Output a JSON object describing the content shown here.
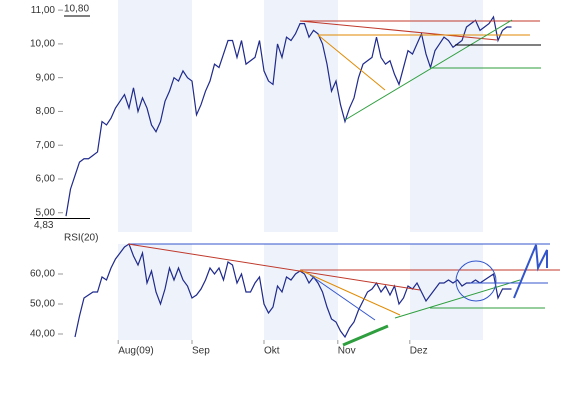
{
  "chart_data": [
    {
      "type": "line",
      "xlim": [
        0,
        99
      ],
      "ylim": [
        4.43,
        11.3
      ],
      "yticks": [
        {
          "value": 5,
          "label": "5,00"
        },
        {
          "value": 6,
          "label": "6,00"
        },
        {
          "value": 7,
          "label": "7,00"
        },
        {
          "value": 8,
          "label": "8,00"
        },
        {
          "value": 9,
          "label": "9,00"
        },
        {
          "value": 10,
          "label": "10,00"
        },
        {
          "value": 11,
          "label": "11,00"
        }
      ],
      "annotations": [
        {
          "value": 10.8,
          "label": "10,80"
        },
        {
          "value": 4.83,
          "label": "4,83"
        }
      ],
      "series": [
        {
          "color": "#1f2a8c",
          "values": [
            4.9,
            5.7,
            6.1,
            6.5,
            6.6,
            6.6,
            6.7,
            6.8,
            7.7,
            7.6,
            7.8,
            8.1,
            8.3,
            8.5,
            8.1,
            8.7,
            8.0,
            8.4,
            8.1,
            7.6,
            7.4,
            7.7,
            8.3,
            8.6,
            9.0,
            8.9,
            9.2,
            9.0,
            8.9,
            7.9,
            8.2,
            8.6,
            8.9,
            9.4,
            9.3,
            9.7,
            10.1,
            10.1,
            9.6,
            10.1,
            9.4,
            9.5,
            9.6,
            10.1,
            9.2,
            8.9,
            8.8,
            10.0,
            9.6,
            10.2,
            10.1,
            10.3,
            10.6,
            10.6,
            10.2,
            10.4,
            10.3,
            10.0,
            9.4,
            8.6,
            8.9,
            8.2,
            7.7,
            8.1,
            8.4,
            9.0,
            9.4,
            9.5,
            9.6,
            10.2,
            9.6,
            9.4,
            9.5,
            9.1,
            8.8,
            9.3,
            9.8,
            9.7,
            10.0,
            10.3,
            9.7,
            9.3,
            9.8,
            10.0,
            10.2,
            10.1,
            9.9,
            10.0,
            10.1,
            10.5,
            10.6,
            10.7,
            10.4,
            10.5,
            10.6,
            10.8,
            10.1,
            10.4,
            10.5,
            10.5
          ]
        }
      ]
    },
    {
      "type": "line",
      "title": "RSI(20)",
      "xlim": [
        0,
        99
      ],
      "xticks": [
        {
          "value": 11.6,
          "label": "Aug(09)"
        },
        {
          "value": 28,
          "label": "Sep"
        },
        {
          "value": 44,
          "label": "Okt"
        },
        {
          "value": 60.4,
          "label": "Nov"
        },
        {
          "value": 76.4,
          "label": "Dez"
        }
      ],
      "ylim": [
        38,
        74
      ],
      "yticks": [
        {
          "value": 40,
          "label": "40,00"
        },
        {
          "value": 50,
          "label": "50,00"
        },
        {
          "value": 60,
          "label": "60,00"
        }
      ],
      "series": [
        {
          "color": "#1f2a8c",
          "values": [
            null,
            null,
            39,
            46,
            52,
            53,
            54,
            54,
            59,
            58,
            62,
            65,
            67,
            69,
            70,
            66,
            63,
            67,
            57,
            61,
            54,
            50,
            55,
            62,
            58,
            62,
            58,
            56,
            52,
            53,
            55,
            58,
            62,
            60,
            62,
            58,
            64,
            63,
            57,
            60,
            54,
            54,
            57,
            59,
            50,
            47,
            49,
            56,
            54,
            59,
            58,
            60,
            61,
            60,
            57,
            59,
            57,
            54,
            49,
            45,
            44,
            41,
            39,
            42,
            44,
            48,
            51,
            54,
            55,
            57,
            54,
            56,
            53,
            56,
            50,
            52,
            56,
            55,
            57,
            54,
            51,
            53,
            55,
            57,
            57,
            58,
            57,
            58,
            56,
            57,
            57,
            58,
            57,
            58,
            59,
            60,
            52,
            55,
            55,
            55
          ]
        }
      ]
    }
  ]
}
